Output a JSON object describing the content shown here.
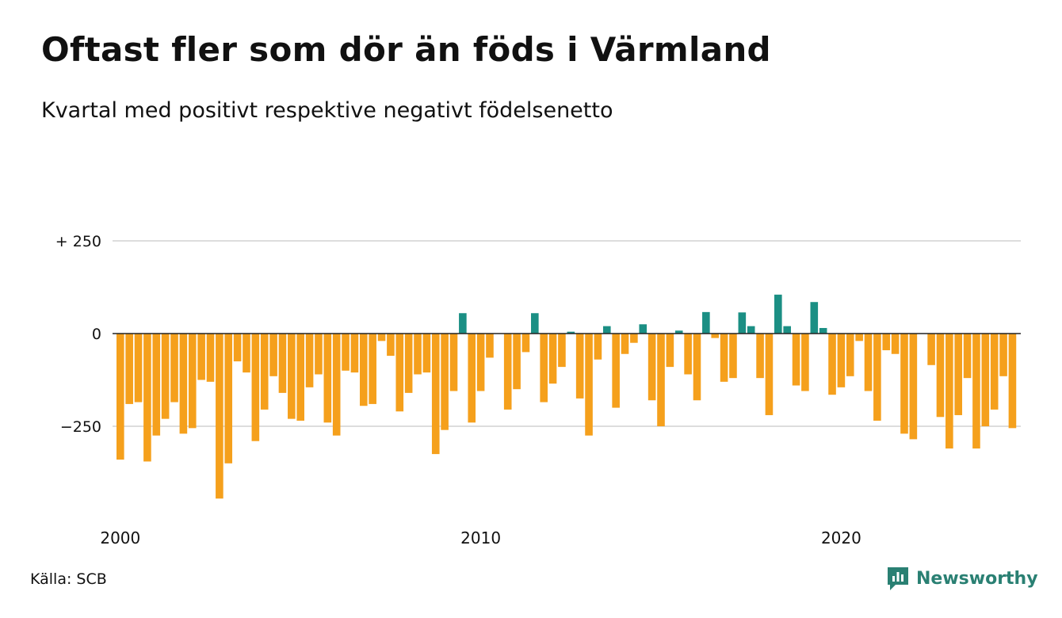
{
  "header": {
    "title": "Oftast fler som dör än föds i Värmland",
    "subtitle": "Kvartal med positivt respektive negativt födelsenetto"
  },
  "footer": {
    "source": "Källa: SCB",
    "brand": "Newsworthy",
    "brand_icon": "newsworthy-logo-icon"
  },
  "colors": {
    "negative": "#f5a01c",
    "positive": "#1b8f84",
    "grid": "#dddddd",
    "zero_line": "#222222",
    "brand": "#2a8073"
  },
  "chart_data": {
    "type": "bar",
    "title": "Oftast fler som dör än föds i Värmland",
    "subtitle": "Kvartal med positivt respektive negativt födelsenetto",
    "xlabel": "",
    "ylabel": "",
    "y_ticks": [
      250,
      0,
      -250
    ],
    "y_tick_labels": [
      "+ 250",
      "0",
      "−250"
    ],
    "ylim": [
      -500,
      250
    ],
    "x_ticks": [
      2000,
      2010,
      2020
    ],
    "x_tick_labels": [
      "2000",
      "2010",
      "2020"
    ],
    "x_start": 2000,
    "period": "quarter",
    "grid": true,
    "legend": "none",
    "values": [
      -340,
      -190,
      -185,
      -345,
      -275,
      -230,
      -185,
      -270,
      -255,
      -125,
      -130,
      -445,
      -350,
      -75,
      -105,
      -290,
      -205,
      -115,
      -160,
      -230,
      -235,
      -145,
      -110,
      -240,
      -275,
      -100,
      -105,
      -195,
      -190,
      -20,
      -60,
      -210,
      -160,
      -110,
      -105,
      -325,
      -260,
      -155,
      55,
      -240,
      -155,
      -65,
      0,
      -205,
      -150,
      -50,
      55,
      -185,
      -135,
      -90,
      5,
      -175,
      -275,
      -70,
      20,
      -200,
      -55,
      -25,
      25,
      -180,
      -250,
      -90,
      8,
      -110,
      -180,
      58,
      -12,
      -130,
      -120,
      57,
      20,
      -120,
      -220,
      105,
      20,
      -140,
      -155,
      85,
      15,
      -165,
      -145,
      -115,
      -20,
      -155,
      -235,
      -45,
      -55,
      -270,
      -285,
      0,
      -85,
      -225,
      -310,
      -220,
      -120,
      -310,
      -250,
      -205,
      -115,
      -255
    ]
  }
}
